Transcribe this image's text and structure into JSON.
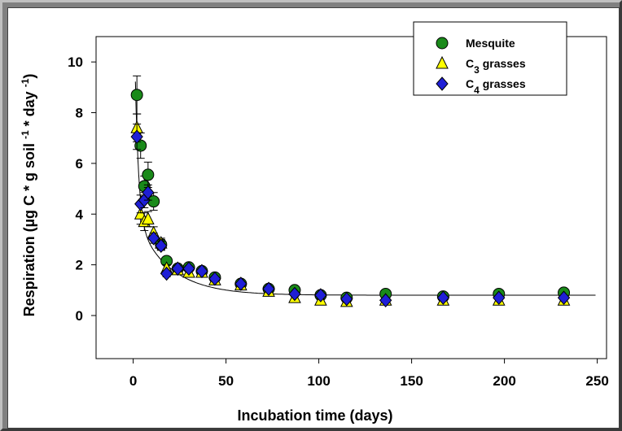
{
  "chart_data": {
    "type": "scatter",
    "title": "",
    "xlabel": "Incubation time (days)",
    "ylabel": "Respiration (µg C * g soil -1 * day -1)",
    "ylabel_parts": {
      "a": "Respiration (µg C * g soil ",
      "sup1": "-1",
      "b": " * day ",
      "sup2": "-1",
      "c": ")"
    },
    "xlim": [
      -20,
      255
    ],
    "ylim": [
      -1.7,
      11
    ],
    "xticks": [
      0,
      50,
      100,
      150,
      200,
      250
    ],
    "yticks": [
      0,
      2,
      4,
      6,
      8,
      10
    ],
    "xtick_labels": [
      "0",
      "50",
      "100",
      "150",
      "200",
      "250"
    ],
    "ytick_labels": [
      "0",
      "2",
      "4",
      "6",
      "8",
      "10"
    ],
    "grid": false,
    "legend_position": "top-right",
    "series": [
      {
        "name": "Mesquite",
        "name_parts": {
          "a": "Mesquite",
          "sub": "",
          "b": ""
        },
        "marker": "circle",
        "color": "#1a8a1a",
        "points": [
          [
            2,
            8.7,
            0.75
          ],
          [
            4,
            6.7,
            0.5
          ],
          [
            6,
            5.1,
            0.4
          ],
          [
            8,
            5.55,
            0.5
          ],
          [
            11,
            4.5,
            0.35
          ],
          [
            15,
            2.8,
            0.2
          ],
          [
            18,
            2.15,
            0.15
          ],
          [
            24,
            1.85,
            0.15
          ],
          [
            30,
            1.9,
            0.12
          ],
          [
            37,
            1.75,
            0.1
          ],
          [
            44,
            1.5,
            0.1
          ],
          [
            58,
            1.25,
            0.08
          ],
          [
            73,
            1.05,
            0.06
          ],
          [
            87,
            1.0,
            0.06
          ],
          [
            101,
            0.8,
            0.05
          ],
          [
            115,
            0.7,
            0.05
          ],
          [
            136,
            0.85,
            0.05
          ],
          [
            167,
            0.75,
            0.05
          ],
          [
            197,
            0.85,
            0.05
          ],
          [
            232,
            0.9,
            0.05
          ]
        ]
      },
      {
        "name": "C3 grasses",
        "name_parts": {
          "a": "C",
          "sub": "3",
          "b": " grasses"
        },
        "marker": "triangle",
        "color": "#ffff00",
        "points": [
          [
            2,
            7.4,
            0.55
          ],
          [
            4,
            4.0,
            0.4
          ],
          [
            6,
            3.7,
            0.35
          ],
          [
            8,
            3.8,
            0.3
          ],
          [
            11,
            3.25,
            0.25
          ],
          [
            15,
            2.85,
            0.2
          ],
          [
            18,
            1.85,
            0.15
          ],
          [
            24,
            1.8,
            0.12
          ],
          [
            30,
            1.7,
            0.1
          ],
          [
            37,
            1.7,
            0.1
          ],
          [
            44,
            1.4,
            0.08
          ],
          [
            58,
            1.2,
            0.08
          ],
          [
            73,
            0.95,
            0.06
          ],
          [
            87,
            0.7,
            0.05
          ],
          [
            101,
            0.6,
            0.05
          ],
          [
            115,
            0.55,
            0.05
          ],
          [
            136,
            0.6,
            0.05
          ],
          [
            167,
            0.6,
            0.05
          ],
          [
            197,
            0.6,
            0.05
          ],
          [
            232,
            0.6,
            0.05
          ]
        ]
      },
      {
        "name": "C4 grasses",
        "name_parts": {
          "a": "C",
          "sub": "4",
          "b": " grasses"
        },
        "marker": "diamond",
        "color": "#1f1fd6",
        "points": [
          [
            2,
            7.05,
            0.5
          ],
          [
            4,
            4.4,
            0.35
          ],
          [
            6,
            4.55,
            0.3
          ],
          [
            8,
            4.85,
            0.3
          ],
          [
            11,
            3.05,
            0.2
          ],
          [
            15,
            2.75,
            0.18
          ],
          [
            18,
            1.65,
            0.12
          ],
          [
            24,
            1.85,
            0.12
          ],
          [
            30,
            1.85,
            0.1
          ],
          [
            37,
            1.75,
            0.1
          ],
          [
            44,
            1.45,
            0.08
          ],
          [
            58,
            1.25,
            0.08
          ],
          [
            73,
            1.05,
            0.06
          ],
          [
            87,
            0.85,
            0.05
          ],
          [
            101,
            0.8,
            0.05
          ],
          [
            115,
            0.65,
            0.05
          ],
          [
            136,
            0.6,
            0.05
          ],
          [
            167,
            0.7,
            0.05
          ],
          [
            197,
            0.7,
            0.05
          ],
          [
            232,
            0.7,
            0.05
          ]
        ]
      }
    ],
    "fit_curve": {
      "type": "double-exponential",
      "asymptote": 0.8,
      "a1": 10.5,
      "k1": 0.55,
      "a2": 3.2,
      "k2": 0.055,
      "x_start": 1.2,
      "x_end": 250
    }
  }
}
